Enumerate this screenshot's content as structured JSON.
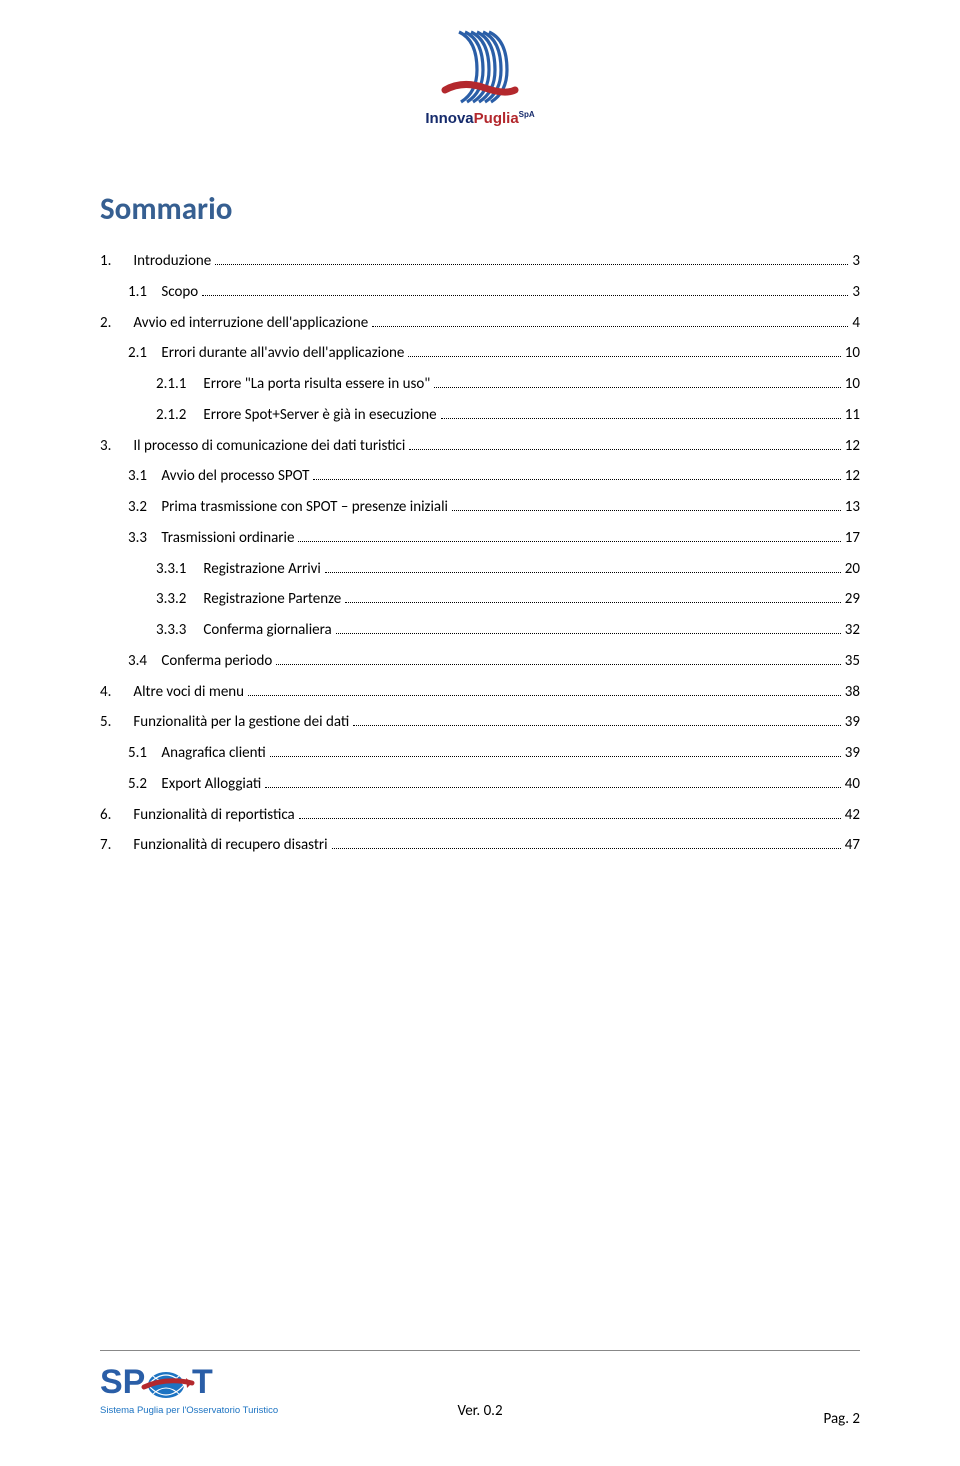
{
  "header": {
    "logo_alt": "InnovaPuglia",
    "logo_colors": {
      "blue_stripes": "#2a5ea7",
      "red_swoosh": "#b3282d",
      "text_blue": "#152a6b",
      "text_red": "#b3282d"
    }
  },
  "title": "Sommario",
  "title_color": "#365f91",
  "title_fontsize": 31,
  "body_fontsize": 15,
  "line_height": 2.05,
  "leader_style": "dotted",
  "toc": [
    {
      "num": "1.",
      "label": "Introduzione",
      "page": "3",
      "indent": 0
    },
    {
      "num": "1.1",
      "label": "Scopo",
      "page": "3",
      "indent": 1
    },
    {
      "num": "2.",
      "label": "Avvio ed interruzione dell'applicazione",
      "page": "4",
      "indent": 0
    },
    {
      "num": "2.1",
      "label": "Errori durante all'avvio dell'applicazione",
      "page": "10",
      "indent": 1
    },
    {
      "num": "2.1.1",
      "label": "Errore \"La porta risulta essere in uso\"",
      "page": "10",
      "indent": 2
    },
    {
      "num": "2.1.2",
      "label": "Errore Spot+Server è già in esecuzione",
      "page": "11",
      "indent": 2
    },
    {
      "num": "3.",
      "label": "Il processo di comunicazione dei dati turistici",
      "page": "12",
      "indent": 0
    },
    {
      "num": "3.1",
      "label": "Avvio del processo SPOT",
      "page": "12",
      "indent": 1
    },
    {
      "num": "3.2",
      "label": "Prima trasmissione con SPOT – presenze iniziali",
      "page": "13",
      "indent": 1
    },
    {
      "num": "3.3",
      "label": "Trasmissioni ordinarie",
      "page": "17",
      "indent": 1
    },
    {
      "num": "3.3.1",
      "label": "Registrazione Arrivi",
      "page": "20",
      "indent": 2
    },
    {
      "num": "3.3.2",
      "label": "Registrazione Partenze",
      "page": "29",
      "indent": 2
    },
    {
      "num": "3.3.3",
      "label": "Conferma giornaliera",
      "page": "32",
      "indent": 2
    },
    {
      "num": "3.4",
      "label": "Conferma periodo",
      "page": "35",
      "indent": 1
    },
    {
      "num": "4.",
      "label": "Altre voci di menu",
      "page": "38",
      "indent": 0
    },
    {
      "num": "5.",
      "label": "Funzionalità per la gestione dei dati",
      "page": "39",
      "indent": 0
    },
    {
      "num": "5.1",
      "label": "Anagrafica clienti",
      "page": "39",
      "indent": 1
    },
    {
      "num": "5.2",
      "label": "Export Alloggiati",
      "page": "40",
      "indent": 1
    },
    {
      "num": "6.",
      "label": "Funzionalità di reportistica",
      "page": "42",
      "indent": 0
    },
    {
      "num": "7.",
      "label": "Funzionalità di recupero disastri",
      "page": "47",
      "indent": 0
    }
  ],
  "footer": {
    "logo_alt": "SPOT — Sistema Puglia per l'Osservatorio Turistico",
    "logo_colors": {
      "text_blue": "#2a5ea7",
      "globe_blue": "#1c73c2",
      "subtitle": "#1c73c2"
    },
    "version": "Ver. 0.2",
    "page_label": "Pag. 2"
  }
}
